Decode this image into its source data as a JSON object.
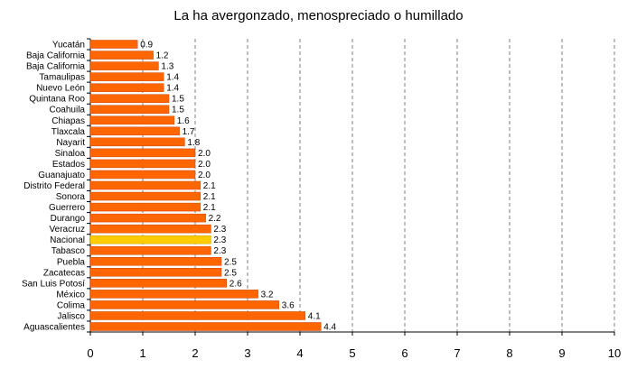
{
  "chart_data": {
    "type": "bar",
    "orientation": "horizontal",
    "title": "La ha avergonzado, menospreciado o humillado",
    "xlabel": "",
    "ylabel": "",
    "xlim": [
      0,
      10
    ],
    "xticks": [
      0,
      1,
      2,
      3,
      4,
      5,
      6,
      7,
      8,
      9,
      10
    ],
    "grid": "vertical dashed",
    "categories": [
      "Yucatán",
      "Baja California",
      "Baja California",
      "Tamaulipas",
      "Nuevo León",
      "Quintana Roo",
      "Coahuila",
      "Chiapas",
      "Tlaxcala",
      "Nayarit",
      "Sinaloa",
      "Estados",
      "Guanajuato",
      "Distrito Federal",
      "Sonora",
      "Guerrero",
      "Durango",
      "Veracruz",
      "Nacional",
      "Tabasco",
      "Puebla",
      "Zacatecas",
      "San Luis Potosí",
      "México",
      "Colima",
      "Jalisco",
      "Aguascalientes"
    ],
    "values": [
      0.9,
      1.2,
      1.3,
      1.4,
      1.4,
      1.5,
      1.5,
      1.6,
      1.7,
      1.8,
      2.0,
      2.0,
      2.0,
      2.1,
      2.1,
      2.1,
      2.2,
      2.3,
      2.3,
      2.3,
      2.5,
      2.5,
      2.6,
      3.2,
      3.6,
      4.1,
      4.4
    ],
    "labels": [
      "0.9",
      "1.2",
      "1.3",
      "1.4",
      "1.4",
      "1.5",
      "1.5",
      "1.6",
      "1.7",
      "1.8",
      "2.0",
      "2.0",
      "2.0",
      "2.1",
      "2.1",
      "2.1",
      "2.2",
      "2.3",
      "2.3",
      "2.3",
      "2.5",
      "2.5",
      "2.6",
      "3.2",
      "3.6",
      "4.1",
      "4.4"
    ],
    "highlight_category": "Nacional",
    "colors": {
      "bar": "#FF6600",
      "bar_edge": "#CC4400",
      "highlight": "#FFCC00",
      "highlight_edge": "#CC9900",
      "grid": "#808080",
      "axis": "#000000"
    }
  }
}
